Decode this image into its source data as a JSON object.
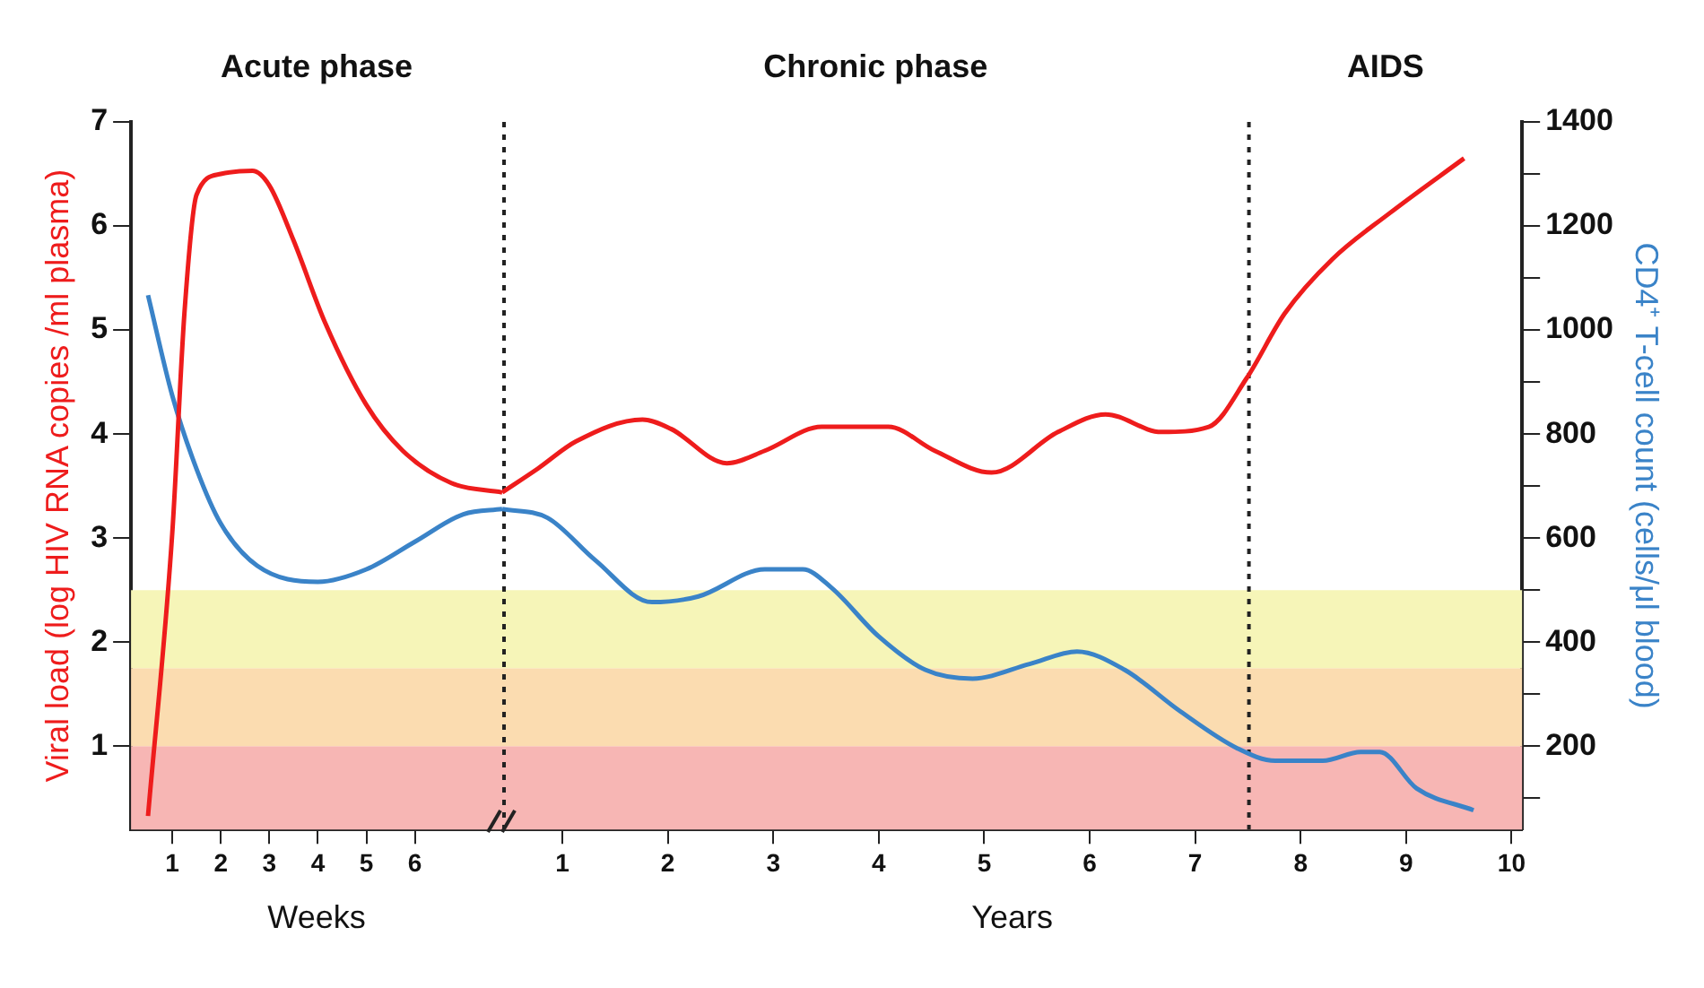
{
  "chart_data": [
    {
      "type": "line",
      "ylabel": "Viral load (log HIV RNA copies /ml plasma)",
      "xlabel": "Weeks",
      "annotations": [
        "Acute phase"
      ],
      "xlim": [
        0.15,
        7.8
      ],
      "xticks": [
        1,
        2,
        3,
        4,
        5,
        6
      ],
      "ylim": [
        0.2,
        7
      ],
      "yticks": [
        1,
        2,
        3,
        4,
        5,
        6,
        7
      ],
      "y2lim": [
        40,
        1400
      ],
      "series": [
        {
          "color": "#ee1c1c",
          "x": [
            0.5,
            1.0,
            1.25,
            1.5,
            2.0,
            2.65,
            3.0,
            3.5,
            4.15,
            5.0,
            5.75,
            6.75,
            7.8
          ],
          "values": [
            0.33,
            3.05,
            5.16,
            6.3,
            6.5,
            6.53,
            6.39,
            5.86,
            5.07,
            4.28,
            3.84,
            3.53,
            3.44
          ]
        },
        {
          "color": "#3a83c8",
          "axis": "y2",
          "x": [
            0.5,
            1.0,
            1.5,
            2.0,
            2.75,
            4.0,
            5.0,
            6.0,
            7.0,
            7.8
          ],
          "values": [
            1067,
            874,
            733,
            628,
            547,
            516,
            540,
            593,
            646,
            656
          ]
        }
      ],
      "bands": [
        {
          "axis": "y",
          "from": 0.2,
          "to": 1,
          "color": "#f7b6b4"
        },
        {
          "axis": "y",
          "from": 1,
          "to": 1.75,
          "color": "#fbdcb0"
        },
        {
          "axis": "y",
          "from": 1.75,
          "to": 2.5,
          "color": "#f6f5b8"
        }
      ],
      "grid": false,
      "legend": false,
      "marker": "none",
      "line_style": "solid"
    },
    {
      "type": "line",
      "y2label": "CD4⁺ T-cell count (cells/μl blood)",
      "xlabel": "Years",
      "annotations": [
        "Chronic phase",
        "AIDS"
      ],
      "xlim": [
        0.43,
        10.1
      ],
      "xticks": [
        1,
        2,
        3,
        4,
        5,
        6,
        7,
        8,
        9,
        10
      ],
      "ylim": [
        0.2,
        7
      ],
      "y2lim": [
        40,
        1400
      ],
      "y2ticks": [
        {
          "value": 100,
          "label": null
        },
        200,
        {
          "value": 300,
          "label": null
        },
        400,
        {
          "value": 500,
          "label": null
        },
        600,
        {
          "value": 700,
          "label": null
        },
        800,
        {
          "value": 900,
          "label": null
        },
        1000,
        {
          "value": 1100,
          "label": null
        },
        1200,
        {
          "value": 1300,
          "label": null
        },
        1400
      ],
      "series": [
        {
          "color": "#ee1c1c",
          "x": [
            0.43,
            0.77,
            1.13,
            1.76,
            2.03,
            2.56,
            2.92,
            3.46,
            4.09,
            4.53,
            5.07,
            5.7,
            6.15,
            6.68,
            7.13,
            7.49,
            7.85,
            8.3,
            8.84,
            9.55
          ],
          "values": [
            3.44,
            3.67,
            3.93,
            4.14,
            4.05,
            3.72,
            3.84,
            4.07,
            4.07,
            3.84,
            3.63,
            4.02,
            4.19,
            4.02,
            4.07,
            4.54,
            5.16,
            5.68,
            6.12,
            6.65
          ]
        },
        {
          "color": "#3a83c8",
          "axis": "y2",
          "x": [
            0.43,
            0.86,
            1.31,
            1.85,
            2.29,
            2.92,
            3.28,
            3.55,
            4.0,
            4.44,
            4.89,
            5.43,
            5.88,
            6.33,
            6.86,
            7.4,
            7.76,
            8.21,
            8.57,
            8.75,
            9.1,
            9.64
          ],
          "values": [
            656,
            639,
            558,
            477,
            488,
            540,
            540,
            505,
            411,
            347,
            330,
            358,
            382,
            347,
            267,
            196,
            172,
            172,
            189,
            189,
            119,
            77
          ]
        }
      ],
      "ref_lines": [
        {
          "axis": "x",
          "value": 0.43,
          "color": "#222222",
          "line_style": "dotted"
        },
        {
          "axis": "x",
          "value": 7.51,
          "color": "#222222",
          "line_style": "dotted"
        }
      ],
      "bands": [
        {
          "axis": "y",
          "from": 0.2,
          "to": 1,
          "color": "#f7b6b4"
        },
        {
          "axis": "y",
          "from": 1,
          "to": 1.75,
          "color": "#fbdcb0"
        },
        {
          "axis": "y",
          "from": 1.75,
          "to": 2.5,
          "color": "#f6f5b8"
        }
      ],
      "grid": false,
      "legend": false,
      "marker": "none",
      "line_style": "solid"
    }
  ]
}
